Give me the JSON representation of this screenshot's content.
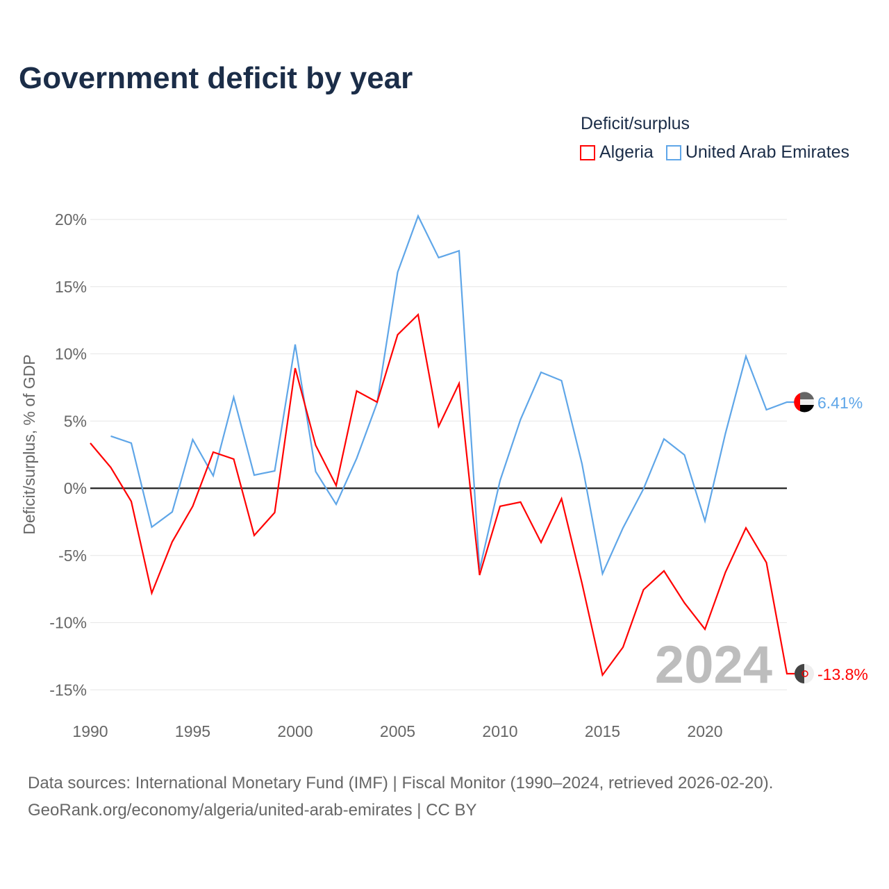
{
  "title": "Government deficit by year",
  "legend": {
    "title": "Deficit/surplus",
    "items": [
      {
        "label": "Algeria",
        "color": "#ff0000"
      },
      {
        "label": "United Arab Emirates",
        "color": "#5fa6e8"
      }
    ]
  },
  "year_watermark": "2024",
  "source": {
    "line1": "Data sources: International Monetary Fund (IMF) | Fiscal Monitor (1990–2024, retrieved 2026-02-20).",
    "line2": "GeoRank.org/economy/algeria/united-arab-emirates | CC BY"
  },
  "chart_data": {
    "type": "line",
    "title": "Government deficit by year",
    "xlabel": "",
    "ylabel": "Deficit/surplus, % of GDP",
    "xlim": [
      1990,
      2024
    ],
    "ylim": [
      -15,
      20
    ],
    "xticks": [
      1990,
      1995,
      2000,
      2005,
      2010,
      2015,
      2020
    ],
    "xtick_labels": [
      "1990",
      "1995",
      "2000",
      "2005",
      "2010",
      "2015",
      "2020"
    ],
    "yticks": [
      -15,
      -10,
      -5,
      0,
      5,
      10,
      15,
      20
    ],
    "ytick_labels": [
      "-15%",
      "-10%",
      "-5%",
      "0%",
      "5%",
      "10%",
      "15%",
      "20%"
    ],
    "grid": true,
    "legend_position": "top-right",
    "series": [
      {
        "name": "Algeria",
        "color": "#ff0000",
        "end_label": "-13.8%",
        "x": [
          1990,
          1991,
          1992,
          1993,
          1994,
          1995,
          1996,
          1997,
          1998,
          1999,
          2000,
          2001,
          2002,
          2003,
          2004,
          2005,
          2006,
          2007,
          2008,
          2009,
          2010,
          2011,
          2012,
          2013,
          2014,
          2015,
          2016,
          2017,
          2018,
          2019,
          2020,
          2021,
          2022,
          2023,
          2024
        ],
        "values": [
          3.36,
          1.55,
          -0.98,
          -7.8,
          -3.98,
          -1.34,
          2.69,
          2.17,
          -3.51,
          -1.81,
          8.94,
          3.2,
          0.2,
          7.24,
          6.41,
          11.42,
          12.92,
          4.6,
          7.8,
          -6.46,
          -1.34,
          -1.03,
          -4.03,
          -0.78,
          -7.08,
          -13.9,
          -11.83,
          -7.55,
          -6.15,
          -8.53,
          -10.49,
          -6.25,
          -2.95,
          -5.53,
          -13.8
        ]
      },
      {
        "name": "United Arab Emirates",
        "color": "#5fa6e8",
        "end_label": "6.41%",
        "x": [
          1991,
          1992,
          1993,
          1994,
          1995,
          1996,
          1997,
          1998,
          1999,
          2000,
          2001,
          2002,
          2003,
          2004,
          2005,
          2006,
          2007,
          2008,
          2009,
          2010,
          2011,
          2012,
          2013,
          2014,
          2015,
          2016,
          2017,
          2018,
          2019,
          2020,
          2021,
          2022,
          2023,
          2024
        ],
        "values": [
          3.88,
          3.36,
          -2.89,
          -1.76,
          3.62,
          0.93,
          6.77,
          0.98,
          1.29,
          10.7,
          1.24,
          -1.19,
          2.22,
          6.36,
          16.07,
          20.26,
          17.16,
          17.67,
          -6.05,
          0.57,
          5.12,
          8.63,
          8.01,
          1.81,
          -6.36,
          -2.95,
          -0.05,
          3.67,
          2.48,
          -2.43,
          4.08,
          9.82,
          5.84,
          6.41
        ]
      }
    ]
  }
}
